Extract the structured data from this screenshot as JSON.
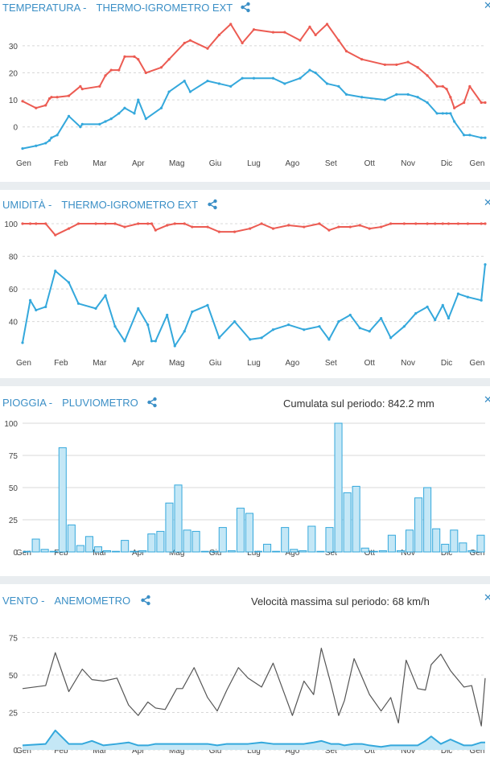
{
  "months": [
    "Gen",
    "Feb",
    "Mar",
    "Apr",
    "Mag",
    "Giu",
    "Lug",
    "Ago",
    "Set",
    "Ott",
    "Nov",
    "Dic",
    "Gen"
  ],
  "colors": {
    "red": "#ec5b52",
    "blue": "#34a8dc",
    "grey": "#555555",
    "title": "#3b8fc6",
    "bar_fill": "#c4e7f6"
  },
  "panels": {
    "temperatura": {
      "title_a": "TEMPERATURA -",
      "title_b": "THERMO-IGROMETRO EXT",
      "share_icon": "share-icon",
      "close_icon": "close-icon"
    },
    "umidita": {
      "title_a": "UMIDITÀ -",
      "title_b": "THERMO-IGROMETRO EXT",
      "share_icon": "share-icon",
      "close_icon": "close-icon"
    },
    "pioggia": {
      "title_a": "PIOGGIA -",
      "title_b": "PLUVIOMETRO",
      "note": "Cumulata sul periodo: 842.2 mm",
      "share_icon": "share-icon",
      "close_icon": "close-icon"
    },
    "vento": {
      "title_a": "VENTO -",
      "title_b": "ANEMOMETRO",
      "note": "Velocità massima sul periodo: 68 km/h",
      "share_icon": "share-icon",
      "close_icon": "close-icon"
    }
  },
  "chart_data": [
    {
      "type": "line",
      "title": "TEMPERATURA - THERMO-IGROMETRO EXT",
      "x": [
        0,
        0.35,
        0.6,
        0.7,
        0.75,
        0.9,
        1.2,
        1.5,
        1.55,
        2.0,
        2.15,
        2.3,
        2.5,
        2.65,
        2.9,
        3.0,
        3.2,
        3.6,
        3.8,
        4.2,
        4.35,
        4.8,
        5.1,
        5.4,
        5.7,
        6.0,
        6.5,
        6.8,
        7.2,
        7.45,
        7.6,
        7.9,
        8.2,
        8.4,
        8.8,
        9.4,
        9.7,
        10.0,
        10.25,
        10.5,
        10.75,
        10.9,
        11.0,
        11.1,
        11.2,
        11.45,
        11.6,
        11.9,
        12.0
      ],
      "series": [
        {
          "color": "#ec5b52",
          "values": [
            9.5,
            7,
            8,
            10.5,
            11,
            11,
            11.5,
            15,
            14,
            15,
            19,
            21,
            21,
            26,
            26,
            25,
            20,
            22,
            25,
            31,
            32,
            29,
            34,
            38,
            31,
            36,
            35,
            35,
            32,
            37,
            34,
            38,
            32,
            28,
            25,
            23,
            23,
            24,
            22,
            19,
            15,
            15,
            14,
            11,
            7,
            9,
            15,
            9,
            9
          ]
        },
        {
          "color": "#34a8dc",
          "values": [
            -8,
            -7,
            -6,
            -5,
            -4,
            -3,
            4,
            0,
            1,
            1,
            2,
            3,
            5,
            7,
            5,
            10,
            3,
            7,
            13,
            17,
            13,
            17,
            16,
            15,
            18,
            18,
            18,
            16,
            18,
            21,
            20,
            16,
            15,
            12,
            11,
            10,
            12,
            12,
            11,
            9,
            5,
            5,
            5,
            5,
            2,
            -3,
            -3,
            -4,
            -4
          ]
        }
      ],
      "ylim": [
        -9,
        38
      ],
      "yticks": [
        0,
        10,
        20,
        30
      ]
    },
    {
      "type": "line",
      "title": "UMIDITÀ - THERMO-IGROMETRO EXT",
      "x": [
        0,
        0.2,
        0.35,
        0.6,
        0.85,
        1.2,
        1.45,
        1.9,
        2.15,
        2.4,
        2.65,
        3.0,
        3.25,
        3.35,
        3.45,
        3.75,
        3.95,
        4.2,
        4.4,
        4.8,
        5.1,
        5.5,
        5.9,
        6.2,
        6.5,
        6.9,
        7.3,
        7.7,
        7.95,
        8.2,
        8.5,
        8.75,
        9.0,
        9.3,
        9.55,
        9.9,
        10.2,
        10.5,
        10.7,
        10.9,
        11.05,
        11.3,
        11.55,
        11.9,
        12.0
      ],
      "series": [
        {
          "color": "#ec5b52",
          "values": [
            100,
            100,
            100,
            100,
            93,
            97,
            100,
            100,
            100,
            100,
            98,
            100,
            100,
            100,
            96,
            99,
            100,
            100,
            98,
            98,
            95,
            95,
            97,
            100,
            97,
            99,
            98,
            100,
            96,
            98,
            98,
            99,
            97,
            98,
            100,
            100,
            100,
            100,
            100,
            100,
            100,
            100,
            100,
            100,
            100
          ]
        },
        {
          "color": "#34a8dc",
          "values": [
            27,
            53,
            47,
            49,
            71,
            64,
            51,
            48,
            56,
            37,
            28,
            48,
            38,
            28,
            28,
            44,
            25,
            34,
            46,
            50,
            30,
            40,
            29,
            30,
            35,
            38,
            35,
            37,
            29,
            40,
            44,
            36,
            34,
            42,
            30,
            37,
            45,
            49,
            41,
            50,
            42,
            57,
            55,
            53,
            75
          ]
        }
      ],
      "ylim": [
        25,
        100
      ],
      "yticks": [
        40,
        60,
        80,
        100
      ]
    },
    {
      "type": "bar",
      "title": "PIOGGIA - PLUVIOMETRO",
      "values": [
        0.5,
        10,
        2,
        0.5,
        81,
        21,
        5,
        12,
        4,
        1,
        0.5,
        9,
        0.5,
        1,
        14,
        16,
        38,
        52,
        17,
        16,
        0.5,
        0.5,
        19,
        1,
        34,
        30,
        0.5,
        6,
        0.5,
        19,
        2,
        1,
        20,
        0.5,
        19,
        100,
        46,
        51,
        3,
        0.5,
        1,
        13,
        1,
        17,
        42,
        50,
        18,
        6,
        17,
        7,
        1,
        13
      ],
      "ylim": [
        0,
        100
      ],
      "yticks": [
        0,
        25,
        50,
        75,
        100
      ],
      "series": [
        {
          "color": "#34a8dc",
          "fill": "#c4e7f6"
        }
      ]
    },
    {
      "type": "line",
      "title": "VENTO - ANEMOMETRO",
      "x": [
        0,
        0.6,
        0.85,
        1.2,
        1.55,
        1.8,
        2.1,
        2.45,
        2.75,
        3.0,
        3.25,
        3.45,
        3.7,
        4.0,
        4.15,
        4.45,
        4.8,
        5.05,
        5.3,
        5.6,
        5.85,
        6.2,
        6.5,
        6.8,
        7.0,
        7.3,
        7.55,
        7.75,
        8.0,
        8.2,
        8.35,
        8.6,
        8.8,
        9.0,
        9.3,
        9.55,
        9.75,
        9.95,
        10.25,
        10.45,
        10.6,
        10.85,
        11.1,
        11.45,
        11.65,
        11.9,
        12.0
      ],
      "series": [
        {
          "color": "#555555",
          "name": "",
          "values": [
            41,
            43,
            65,
            39,
            54,
            47,
            46,
            48,
            30,
            23,
            32,
            28,
            27,
            41,
            41,
            55,
            35,
            26,
            40,
            55,
            48,
            42,
            58,
            37,
            23,
            46,
            37,
            68,
            44,
            23,
            33,
            61,
            49,
            37,
            26,
            35,
            18,
            60,
            41,
            40,
            57,
            64,
            53,
            42,
            43,
            16,
            48
          ]
        },
        {
          "color": "#34a8dc",
          "name": "",
          "values": [
            3,
            4,
            13,
            4,
            4,
            6,
            3,
            4,
            5,
            3,
            3,
            4,
            4,
            4,
            4,
            4,
            4,
            3,
            4,
            4,
            4,
            5,
            4,
            4,
            4,
            4,
            5,
            6,
            4,
            4,
            3,
            4,
            4,
            3,
            2,
            3,
            3,
            3,
            3,
            6,
            9,
            4,
            7,
            3,
            3,
            5,
            5
          ]
        }
      ],
      "ylim": [
        0,
        85
      ],
      "yticks": [
        0,
        25,
        50,
        75
      ]
    }
  ]
}
